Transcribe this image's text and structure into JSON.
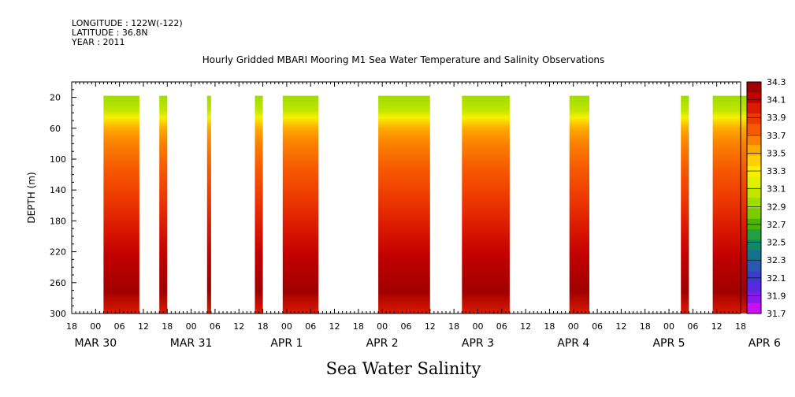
{
  "header": {
    "longitude": "LONGITUDE : 122W(-122)",
    "latitude": "LATITUDE : 36.8N",
    "year": "YEAR : 2011"
  },
  "chart_data": {
    "type": "heatmap",
    "title": "Hourly Gridded MBARI Mooring M1 Sea Water Temperature and Salinity Observations",
    "xlabel": "Sea Water Salinity",
    "ylabel": "DEPTH (m)",
    "ylim": [
      300,
      0
    ],
    "xlim_hours": [
      -6,
      162
    ],
    "y_ticks": [
      20,
      60,
      100,
      140,
      180,
      220,
      260,
      300
    ],
    "x_hour_tick_labels": [
      "18",
      "00",
      "06",
      "12",
      "18",
      "00",
      "06",
      "12",
      "18",
      "00",
      "06",
      "12",
      "18",
      "00",
      "06",
      "12",
      "18",
      "00",
      "06",
      "12",
      "18",
      "00",
      "06",
      "12",
      "18",
      "00",
      "06",
      "12",
      "18"
    ],
    "x_day_labels": [
      {
        "hour": 0,
        "label": "MAR 30"
      },
      {
        "hour": 24,
        "label": "MAR 31"
      },
      {
        "hour": 48,
        "label": "APR  1"
      },
      {
        "hour": 72,
        "label": "APR  2"
      },
      {
        "hour": 96,
        "label": "APR  3"
      },
      {
        "hour": 120,
        "label": "APR  4"
      },
      {
        "hour": 144,
        "label": "APR  5"
      },
      {
        "hour": 168,
        "label": "APR  6"
      }
    ],
    "colorbar": {
      "levels": [
        "34.3",
        "34.1",
        "33.9",
        "33.7",
        "33.5",
        "33.3",
        "33.1",
        "32.9",
        "32.7",
        "32.5",
        "32.3",
        "32.1",
        "31.9",
        "31.7"
      ],
      "colors": [
        "#a00000",
        "#c30000",
        "#dc1a00",
        "#ee3a00",
        "#f65a00",
        "#fb8200",
        "#fdaa00",
        "#ffd000",
        "#f8f000",
        "#e0f000",
        "#c0e600",
        "#a0dc00",
        "#7cca00",
        "#4cb400",
        "#20a040",
        "#108868",
        "#187090",
        "#2a58b0",
        "#3a3ccc",
        "#5a28e0",
        "#8a18ea",
        "#c810f0"
      ]
    },
    "data_blocks": [
      {
        "start_hour": 2,
        "end_hour": 11
      },
      {
        "start_hour": 16,
        "end_hour": 18
      },
      {
        "start_hour": 28,
        "end_hour": 29
      },
      {
        "start_hour": 40,
        "end_hour": 42
      },
      {
        "start_hour": 47,
        "end_hour": 56
      },
      {
        "start_hour": 71,
        "end_hour": 84
      },
      {
        "start_hour": 92,
        "end_hour": 104
      },
      {
        "start_hour": 119,
        "end_hour": 124
      },
      {
        "start_hour": 147,
        "end_hour": 149
      },
      {
        "start_hour": 155,
        "end_hour": 164
      }
    ],
    "salinity_profile": [
      {
        "depth": 0,
        "value": 33.3
      },
      {
        "depth": 20,
        "value": 33.4
      },
      {
        "depth": 30,
        "value": 33.6
      },
      {
        "depth": 45,
        "value": 33.8
      },
      {
        "depth": 65,
        "value": 33.9
      },
      {
        "depth": 100,
        "value": 34.0
      },
      {
        "depth": 140,
        "value": 34.1
      },
      {
        "depth": 180,
        "value": 34.2
      },
      {
        "depth": 220,
        "value": 34.3
      },
      {
        "depth": 270,
        "value": 34.4
      },
      {
        "depth": 300,
        "value": 34.2
      }
    ]
  }
}
